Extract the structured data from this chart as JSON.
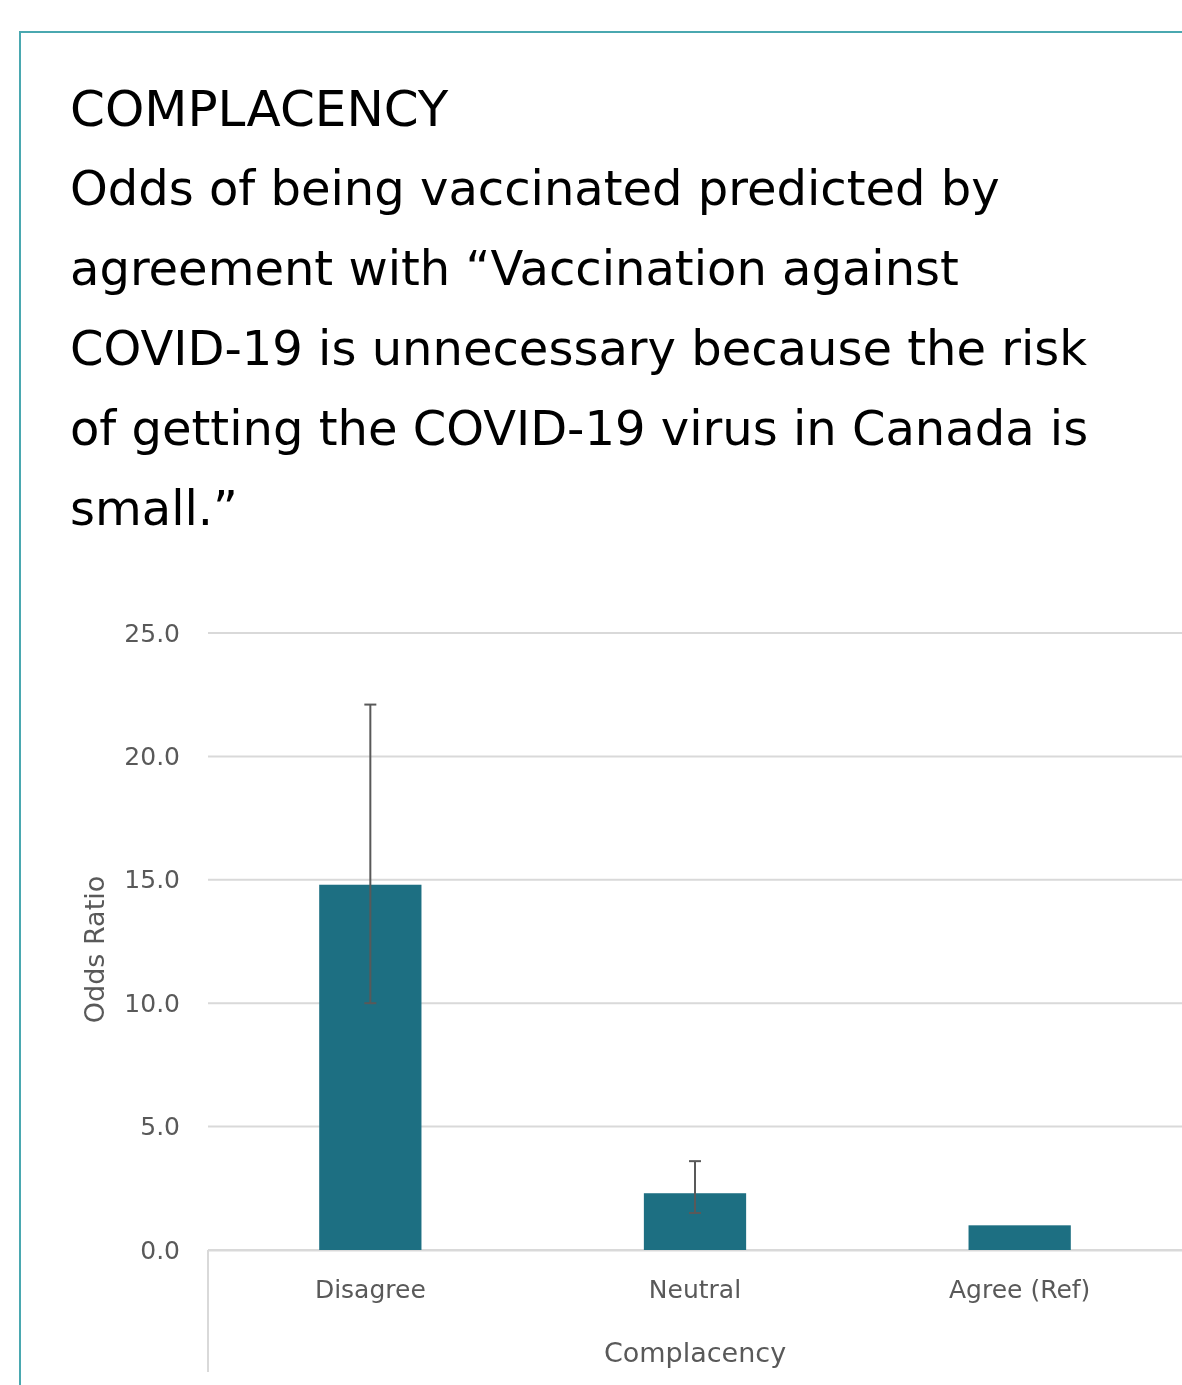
{
  "chart_data": {
    "type": "bar",
    "title": "COMPLACENCY",
    "subtitle": "Odds of being vaccinated predicted by agreement with “Vaccination against COVID-19 is unnecessary because the risk of getting the COVID-19 virus in Canada is small.”",
    "xlabel": "Complacency",
    "ylabel": "Odds Ratio",
    "categories": [
      "Disagree",
      "Neutral",
      "Agree (Ref)"
    ],
    "values": [
      14.8,
      2.3,
      1.0
    ],
    "color": "#1d6f82",
    "errors": [
      [
        10.0,
        22.1
      ],
      [
        1.5,
        3.6
      ],
      null
    ],
    "ylim": [
      0,
      25
    ],
    "yticks": [
      {
        "value": 0,
        "label": "0.0"
      },
      {
        "value": 5,
        "label": "5.0"
      },
      {
        "value": 10,
        "label": "10.0"
      },
      {
        "value": 15,
        "label": "15.0"
      },
      {
        "value": 20,
        "label": "20.0"
      },
      {
        "value": 25,
        "label": "25.0"
      }
    ],
    "grid": "y"
  }
}
